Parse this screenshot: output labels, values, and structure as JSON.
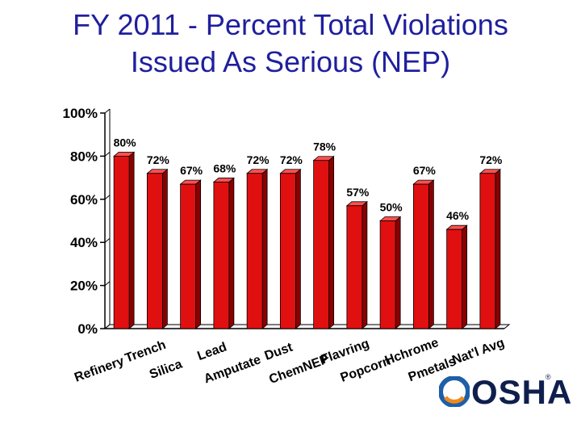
{
  "title": {
    "line1": "FY 2011 - Percent Total Violations",
    "line2": "Issued As Serious (NEP)"
  },
  "chart_data": {
    "type": "bar",
    "title": "FY 2011 - Percent Total Violations Issued As Serious (NEP)",
    "categories": [
      "Refinery",
      "Trench",
      "Silica",
      "Lead",
      "Amputate",
      "Dust",
      "ChemNEP",
      "Flavring",
      "Popcorn",
      "Hchrome",
      "Pmetals",
      "Nat'l Avg"
    ],
    "values": [
      80,
      72,
      67,
      68,
      72,
      72,
      78,
      57,
      50,
      67,
      46,
      72
    ],
    "value_labels": [
      "80%",
      "72%",
      "67%",
      "68%",
      "72%",
      "72%",
      "78%",
      "57%",
      "50%",
      "67%",
      "46%",
      "72%"
    ],
    "ylim": [
      0,
      100
    ],
    "yticks": [
      "0%",
      "20%",
      "40%",
      "60%",
      "80%",
      "100%"
    ],
    "ytick_values": [
      0,
      20,
      40,
      60,
      80,
      100
    ],
    "bar_color": "#e01010",
    "bar_shadow_color": "#8a0000",
    "grid": false,
    "legend": "none"
  },
  "logo": {
    "text": "OSHA",
    "reg": "®",
    "colors": {
      "navy": "#0f1f4d",
      "blue": "#1d5fa8",
      "orange": "#f08a1c"
    }
  }
}
